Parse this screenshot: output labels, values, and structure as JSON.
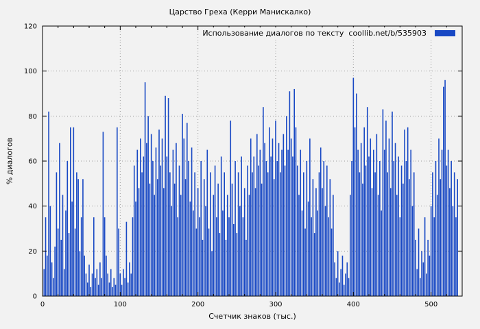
{
  "figure": {
    "title": "Царство Греха (Керри Манискалко)",
    "background": "#f2f2f2",
    "border_color": "#000000",
    "grid_color": "#9a9a9a"
  },
  "legend": {
    "label": "Использование диалогов по тексту",
    "source": "coollib.net/b/535903",
    "swatch_color": "#1848c4",
    "position": "top-right"
  },
  "axes": {
    "x": {
      "label": "Счетчик знаков (тыс.)",
      "min": 0,
      "max": 540,
      "major_tick_step": 100,
      "minor_tick_step": 20,
      "tick_labels": [
        "0",
        "100",
        "200",
        "300",
        "400",
        "500"
      ]
    },
    "y": {
      "label": "% диалогов",
      "min": 0,
      "max": 120,
      "major_tick_step": 20,
      "tick_labels": [
        "0",
        "20",
        "40",
        "60",
        "80",
        "100",
        "120"
      ]
    }
  },
  "chart_data": {
    "type": "bar",
    "title": "Царство Греха (Керри Манискалко)",
    "xlabel": "Счетчик знаков (тыс.)",
    "ylabel": "% диалогов",
    "xlim": [
      0,
      540
    ],
    "ylim": [
      0,
      120
    ],
    "grid": true,
    "legend_position": "top-right",
    "bar_color": "#1848c4",
    "series_name": "Использование диалогов по тексту coollib.net/b/535903",
    "x_start": 2,
    "x_step": 2,
    "values": [
      12,
      35,
      18,
      82,
      40,
      15,
      8,
      22,
      55,
      30,
      68,
      25,
      45,
      12,
      38,
      60,
      28,
      75,
      42,
      75,
      30,
      55,
      52,
      20,
      35,
      52,
      18,
      10,
      6,
      14,
      4,
      10,
      35,
      8,
      12,
      5,
      15,
      8,
      73,
      35,
      18,
      10,
      6,
      12,
      4,
      8,
      5,
      75,
      30,
      10,
      5,
      12,
      8,
      33,
      6,
      15,
      10,
      35,
      58,
      42,
      65,
      48,
      70,
      55,
      62,
      95,
      68,
      80,
      50,
      72,
      60,
      45,
      66,
      52,
      74,
      58,
      70,
      48,
      89,
      62,
      88,
      55,
      40,
      65,
      50,
      68,
      35,
      58,
      45,
      81,
      70,
      52,
      77,
      60,
      42,
      66,
      38,
      55,
      30,
      48,
      35,
      60,
      25,
      52,
      40,
      65,
      30,
      55,
      20,
      45,
      58,
      35,
      50,
      28,
      62,
      38,
      55,
      25,
      45,
      35,
      78,
      50,
      32,
      60,
      28,
      55,
      40,
      62,
      35,
      48,
      25,
      58,
      45,
      70,
      55,
      62,
      48,
      72,
      58,
      65,
      50,
      84,
      68,
      60,
      55,
      75,
      62,
      70,
      52,
      78,
      60,
      68,
      55,
      65,
      72,
      58,
      80,
      65,
      91,
      70,
      62,
      92,
      75,
      58,
      45,
      65,
      38,
      55,
      30,
      60,
      42,
      70,
      35,
      52,
      28,
      48,
      38,
      55,
      66,
      48,
      60,
      40,
      58,
      35,
      52,
      30,
      45,
      15,
      8,
      20,
      6,
      12,
      18,
      5,
      10,
      15,
      8,
      45,
      60,
      97,
      75,
      90,
      65,
      55,
      68,
      50,
      75,
      58,
      84,
      62,
      70,
      48,
      65,
      55,
      72,
      45,
      60,
      38,
      83,
      65,
      78,
      55,
      70,
      48,
      82,
      60,
      68,
      45,
      62,
      35,
      58,
      50,
      74,
      60,
      75,
      52,
      65,
      40,
      55,
      25,
      12,
      30,
      8,
      20,
      15,
      35,
      10,
      25,
      18,
      40,
      55,
      35,
      60,
      45,
      70,
      52,
      65,
      93,
      96,
      58,
      65,
      48,
      60,
      40,
      55,
      35,
      52
    ]
  }
}
